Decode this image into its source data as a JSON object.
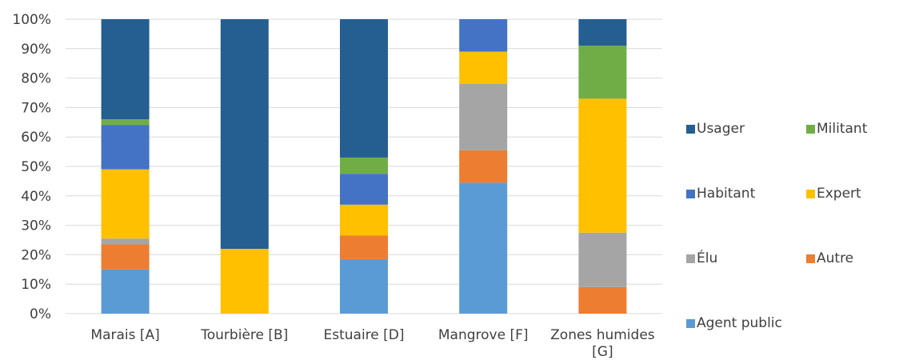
{
  "chart_data": {
    "type": "bar",
    "stacked": true,
    "percent": true,
    "categories": [
      "Marais [A]",
      "Tourbière [B]",
      "Estuaire [D]",
      "Mangrove [F]",
      "Zones humides [G]"
    ],
    "ylim": [
      0,
      100
    ],
    "yticks": [
      0,
      10,
      20,
      30,
      40,
      50,
      60,
      70,
      80,
      90,
      100
    ],
    "ytick_suffix": "%",
    "grid": true,
    "legend_position": "right",
    "series": [
      {
        "name": "Agent public",
        "color": "#5B9BD5",
        "values": [
          15,
          0,
          18.5,
          44.5,
          0
        ]
      },
      {
        "name": "Autre",
        "color": "#ED7D31",
        "values": [
          8.5,
          0,
          8,
          11,
          9
        ]
      },
      {
        "name": "Élu",
        "color": "#A5A5A5",
        "values": [
          2,
          0,
          0,
          22.5,
          18.5
        ]
      },
      {
        "name": "Expert",
        "color": "#FFC000",
        "values": [
          23.5,
          22,
          10.5,
          11,
          45.5
        ]
      },
      {
        "name": "Habitant",
        "color": "#4472C4",
        "values": [
          15,
          0,
          10.5,
          11,
          0
        ]
      },
      {
        "name": "Militant",
        "color": "#70AD47",
        "values": [
          2,
          0,
          5.5,
          0,
          18
        ]
      },
      {
        "name": "Usager",
        "color": "#255E91",
        "values": [
          34,
          78,
          47,
          0,
          9
        ]
      }
    ]
  }
}
